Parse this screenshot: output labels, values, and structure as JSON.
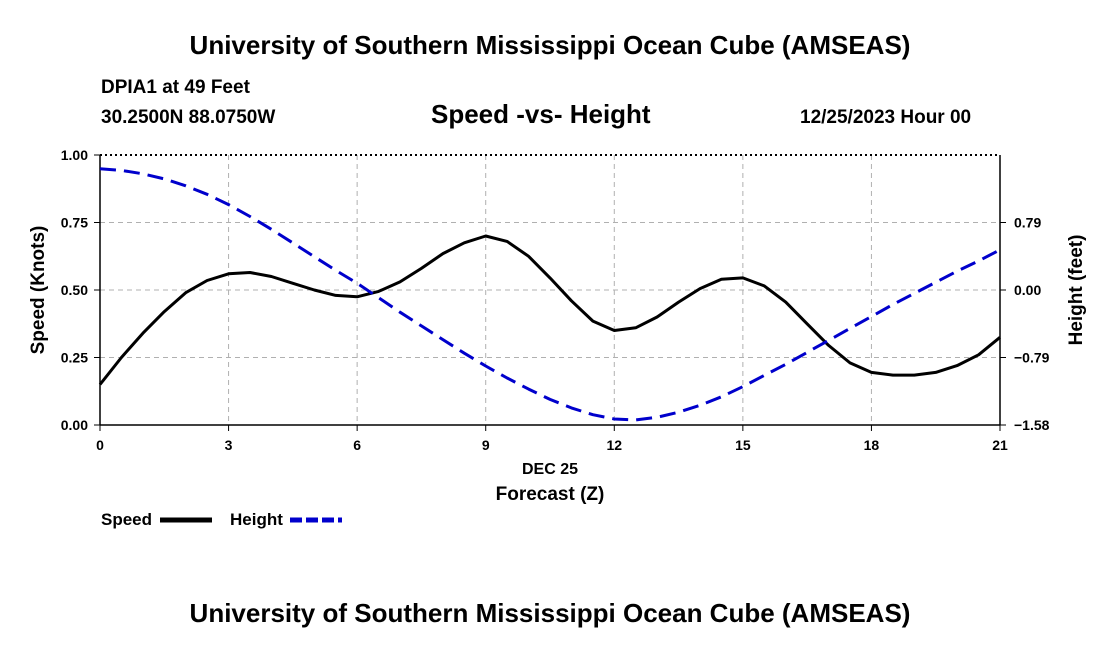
{
  "header": {
    "title": "University of Southern Mississippi Ocean Cube (AMSEAS)",
    "station": "DPIA1 at 49 Feet",
    "coords": "30.2500N  88.0750W",
    "subtitle": "Speed -vs- Height",
    "datetime": "12/25/2023 Hour 00"
  },
  "footer": {
    "title": "University of Southern Mississippi Ocean Cube (AMSEAS)"
  },
  "colors": {
    "speed": "#000000",
    "height": "#0000cc",
    "grid": "#b0b0b0"
  },
  "chart_data": {
    "type": "line",
    "title": "Speed -vs- Height",
    "xlabel": "DEC 25",
    "xlabel2": "Forecast (Z)",
    "ylabel": "Speed (Knots)",
    "y2label": "Height (feet)",
    "xlim": [
      0,
      21
    ],
    "ylim": [
      0,
      1
    ],
    "y2lim": [
      -1.58,
      1.58
    ],
    "x_ticks": [
      "0",
      "3",
      "6",
      "9",
      "12",
      "15",
      "18",
      "21"
    ],
    "y_ticks": [
      "0.00",
      "0.25",
      "0.50",
      "0.75",
      "1.00"
    ],
    "y2_ticks": [
      "-1.58",
      "-0.79",
      "0.00",
      "0.79"
    ],
    "series": [
      {
        "name": "Speed",
        "axis": "left",
        "style": "solid",
        "x": [
          0,
          0.5,
          1,
          1.5,
          2,
          2.5,
          3,
          3.5,
          4,
          4.5,
          5,
          5.5,
          6,
          6.5,
          7,
          7.5,
          8,
          8.5,
          9,
          9.5,
          10,
          10.5,
          11,
          11.5,
          12,
          12.5,
          13,
          13.5,
          14,
          14.5,
          15,
          15.5,
          16,
          16.5,
          17,
          17.5,
          18,
          18.5,
          19,
          19.5,
          20,
          20.5,
          21
        ],
        "values": [
          0.15,
          0.25,
          0.34,
          0.42,
          0.49,
          0.535,
          0.56,
          0.565,
          0.55,
          0.525,
          0.5,
          0.48,
          0.475,
          0.495,
          0.53,
          0.58,
          0.635,
          0.675,
          0.7,
          0.68,
          0.625,
          0.545,
          0.46,
          0.385,
          0.35,
          0.36,
          0.4,
          0.455,
          0.505,
          0.54,
          0.545,
          0.515,
          0.455,
          0.375,
          0.295,
          0.23,
          0.195,
          0.185,
          0.185,
          0.195,
          0.22,
          0.26,
          0.325
        ]
      },
      {
        "name": "Height",
        "axis": "right",
        "style": "dashed",
        "x": [
          0,
          0.5,
          1,
          1.5,
          2,
          2.5,
          3,
          3.5,
          4,
          4.5,
          5,
          5.5,
          6,
          6.5,
          7,
          7.5,
          8,
          8.5,
          9,
          9.5,
          10,
          10.5,
          11,
          11.5,
          12,
          12.5,
          13,
          13.5,
          14,
          14.5,
          15,
          15.5,
          16,
          16.5,
          17,
          17.5,
          18,
          18.5,
          19,
          19.5,
          20,
          20.5,
          21
        ],
        "values": [
          1.42,
          1.4,
          1.36,
          1.3,
          1.22,
          1.12,
          1.0,
          0.86,
          0.71,
          0.55,
          0.39,
          0.23,
          0.08,
          -0.09,
          -0.26,
          -0.42,
          -0.58,
          -0.74,
          -0.89,
          -1.03,
          -1.16,
          -1.28,
          -1.38,
          -1.46,
          -1.51,
          -1.52,
          -1.49,
          -1.43,
          -1.35,
          -1.25,
          -1.13,
          -1.0,
          -0.87,
          -0.73,
          -0.59,
          -0.45,
          -0.31,
          -0.17,
          -0.04,
          0.09,
          0.22,
          0.34,
          0.47
        ]
      }
    ],
    "legend": [
      {
        "name": "Speed",
        "color": "#000000",
        "style": "solid"
      },
      {
        "name": "Height",
        "color": "#0000cc",
        "style": "dashed"
      }
    ]
  }
}
